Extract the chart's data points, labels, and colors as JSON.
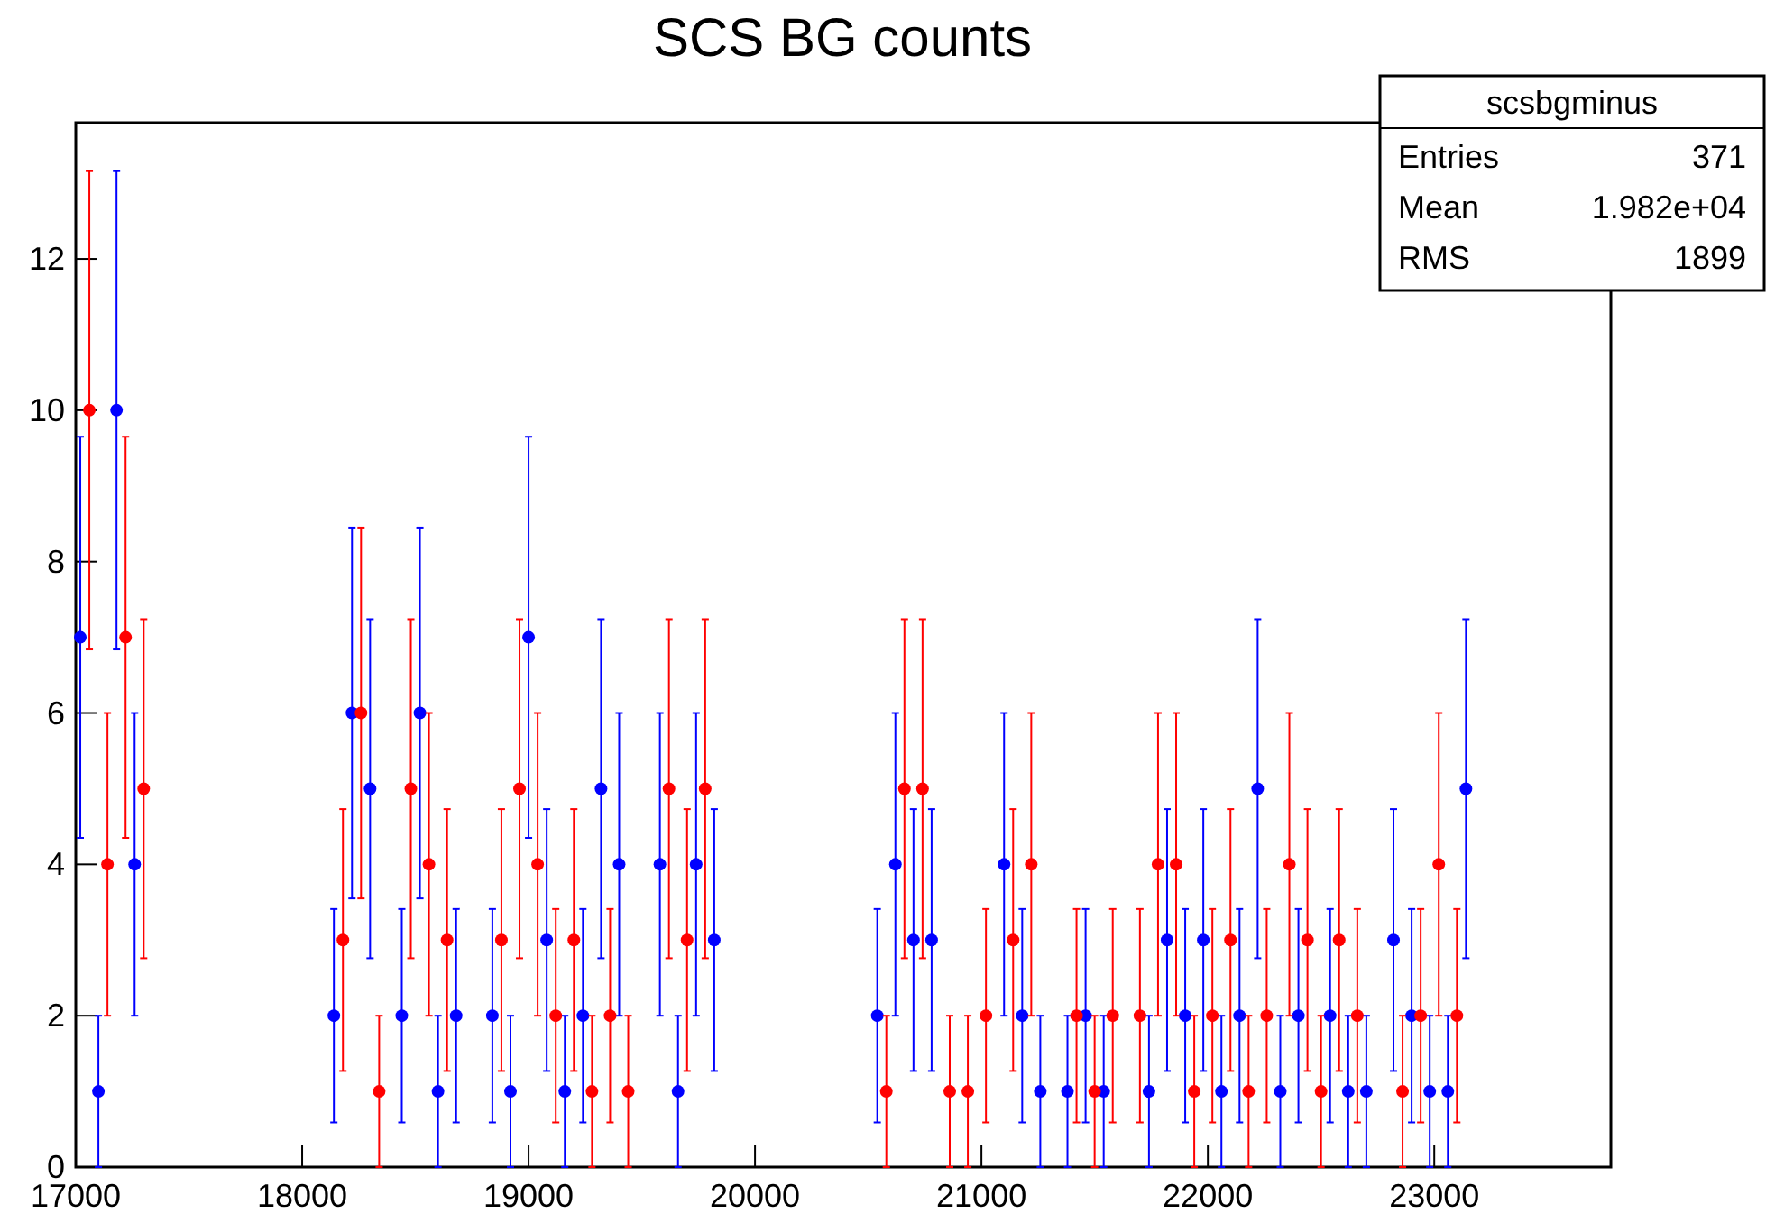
{
  "chart_data": {
    "type": "scatter",
    "title": "SCS BG counts",
    "marker": "circle",
    "grid": false,
    "xlim": [
      17000,
      23780
    ],
    "xticks": [
      17000,
      18000,
      19000,
      20000,
      21000,
      22000,
      23000
    ],
    "ylim": [
      0,
      13.8
    ],
    "yticks": [
      0,
      2,
      4,
      6,
      8,
      10,
      12
    ],
    "annotations": [
      "scsbgminus",
      "Entries",
      "371",
      "Mean",
      "1.982e+04",
      "RMS",
      "1899"
    ],
    "series": [
      {
        "color": "#0000ff",
        "x": [
          17020,
          17100,
          17180,
          17260,
          18140,
          18220,
          18300,
          18440,
          18520,
          18600,
          18680,
          18840,
          18920,
          19000,
          19080,
          19160,
          19240,
          19320,
          19400,
          19580,
          19660,
          19740,
          19820,
          20540,
          20620,
          20700,
          20780,
          21100,
          21180,
          21260,
          21380,
          21460,
          21540,
          21740,
          21820,
          21900,
          21980,
          22060,
          22140,
          22220,
          22320,
          22400,
          22540,
          22620,
          22700,
          22820,
          22900,
          22980,
          23060,
          23140
        ],
        "values": [
          7,
          1,
          10,
          4,
          2,
          6,
          5,
          2,
          6,
          1,
          2,
          2,
          1,
          7,
          3,
          1,
          2,
          5,
          4,
          4,
          1,
          4,
          3,
          2,
          4,
          3,
          3,
          4,
          2,
          1,
          1,
          2,
          1,
          1,
          3,
          2,
          3,
          1,
          2,
          5,
          1,
          2,
          2,
          1,
          1,
          3,
          2,
          1,
          1,
          5
        ],
        "errors": [
          2.65,
          1,
          3.16,
          2,
          1.41,
          2.45,
          2.24,
          1.41,
          2.45,
          1,
          1.41,
          1.41,
          1,
          2.65,
          1.73,
          1,
          1.41,
          2.24,
          2,
          2,
          1,
          2,
          1.73,
          1.41,
          2,
          1.73,
          1.73,
          2,
          1.41,
          1,
          1,
          1.41,
          1,
          1,
          1.73,
          1.41,
          1.73,
          1,
          1.41,
          2.24,
          1,
          1.41,
          1.41,
          1,
          1,
          1.73,
          1.41,
          1,
          1,
          2.24
        ]
      },
      {
        "color": "#ff0000",
        "x": [
          17060,
          17140,
          17220,
          17300,
          18180,
          18260,
          18340,
          18480,
          18560,
          18640,
          18880,
          18960,
          19040,
          19120,
          19200,
          19280,
          19360,
          19440,
          19620,
          19700,
          19780,
          20580,
          20660,
          20740,
          20860,
          20940,
          21020,
          21140,
          21220,
          21420,
          21500,
          21580,
          21700,
          21780,
          21860,
          21940,
          22020,
          22100,
          22180,
          22260,
          22360,
          22440,
          22500,
          22580,
          22660,
          22860,
          22940,
          23020,
          23100
        ],
        "values": [
          10,
          4,
          7,
          5,
          3,
          6,
          1,
          5,
          4,
          3,
          3,
          5,
          4,
          2,
          3,
          1,
          2,
          1,
          5,
          3,
          5,
          1,
          5,
          5,
          1,
          1,
          2,
          3,
          4,
          2,
          1,
          2,
          2,
          4,
          4,
          1,
          2,
          3,
          1,
          2,
          4,
          3,
          1,
          3,
          2,
          1,
          2,
          4,
          2
        ],
        "errors": [
          3.16,
          2,
          2.65,
          2.24,
          1.73,
          2.45,
          1,
          2.24,
          2,
          1.73,
          1.73,
          2.24,
          2,
          1.41,
          1.73,
          1,
          1.41,
          1,
          2.24,
          1.73,
          2.24,
          1,
          2.24,
          2.24,
          1,
          1,
          1.41,
          1.73,
          2,
          1.41,
          1,
          1.41,
          1.41,
          2,
          2,
          1,
          1.41,
          1.73,
          1,
          1.41,
          2,
          1.73,
          1,
          1.73,
          1.41,
          1,
          1.41,
          2,
          1.41
        ]
      }
    ]
  }
}
